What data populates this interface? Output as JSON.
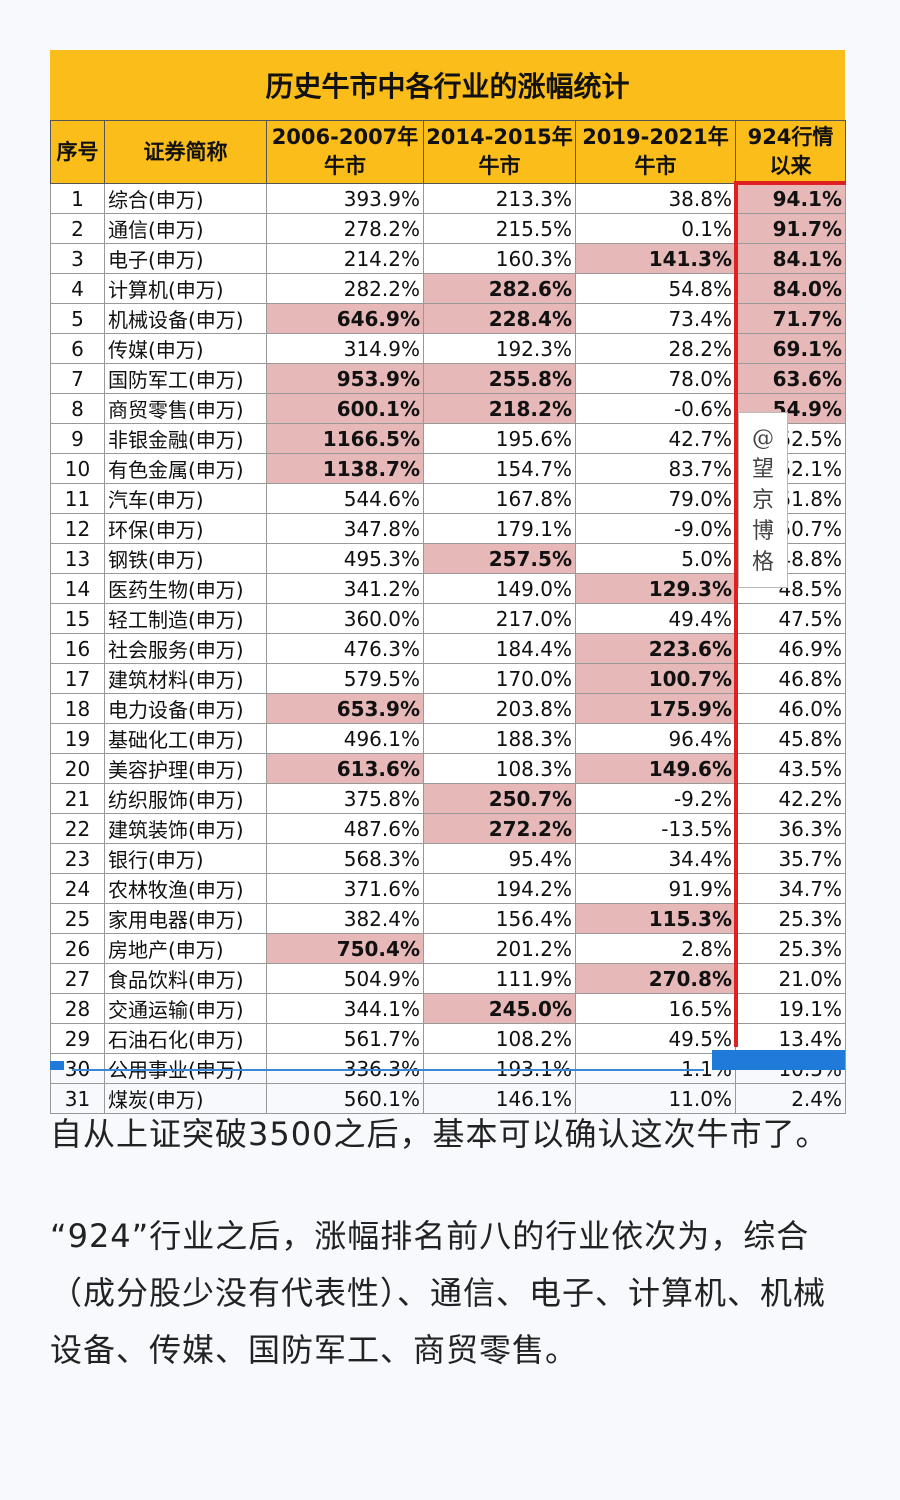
{
  "title": "历史牛市中各行业的涨幅统计",
  "headers": {
    "no": "序号",
    "name": "证券简称",
    "p1_line1": "2006-2007年",
    "p1_line2": "牛市",
    "p2_line1": "2014-2015年",
    "p2_line2": "牛市",
    "p3_line1": "2019-2021年",
    "p3_line2": "牛市",
    "p4_line1": "924行情",
    "p4_line2": "以来"
  },
  "rows": [
    {
      "no": "1",
      "name": "综合(申万)",
      "p1": "393.9%",
      "p2": "213.3%",
      "p3": "38.8%",
      "p4": "94.1%",
      "h1": false,
      "h2": false,
      "h3": false,
      "h4": true
    },
    {
      "no": "2",
      "name": "通信(申万)",
      "p1": "278.2%",
      "p2": "215.5%",
      "p3": "0.1%",
      "p4": "91.7%",
      "h1": false,
      "h2": false,
      "h3": false,
      "h4": true
    },
    {
      "no": "3",
      "name": "电子(申万)",
      "p1": "214.2%",
      "p2": "160.3%",
      "p3": "141.3%",
      "p4": "84.1%",
      "h1": false,
      "h2": false,
      "h3": true,
      "h4": true
    },
    {
      "no": "4",
      "name": "计算机(申万)",
      "p1": "282.2%",
      "p2": "282.6%",
      "p3": "54.8%",
      "p4": "84.0%",
      "h1": false,
      "h2": true,
      "h3": false,
      "h4": true
    },
    {
      "no": "5",
      "name": "机械设备(申万)",
      "p1": "646.9%",
      "p2": "228.4%",
      "p3": "73.4%",
      "p4": "71.7%",
      "h1": true,
      "h2": true,
      "h3": false,
      "h4": true
    },
    {
      "no": "6",
      "name": "传媒(申万)",
      "p1": "314.9%",
      "p2": "192.3%",
      "p3": "28.2%",
      "p4": "69.1%",
      "h1": false,
      "h2": false,
      "h3": false,
      "h4": true
    },
    {
      "no": "7",
      "name": "国防军工(申万)",
      "p1": "953.9%",
      "p2": "255.8%",
      "p3": "78.0%",
      "p4": "63.6%",
      "h1": true,
      "h2": true,
      "h3": false,
      "h4": true
    },
    {
      "no": "8",
      "name": "商贸零售(申万)",
      "p1": "600.1%",
      "p2": "218.2%",
      "p3": "-0.6%",
      "p4": "54.9%",
      "h1": true,
      "h2": true,
      "h3": false,
      "h4": true
    },
    {
      "no": "9",
      "name": "非银金融(申万)",
      "p1": "1166.5%",
      "p2": "195.6%",
      "p3": "42.7%",
      "p4": "52.5%",
      "h1": true,
      "h2": false,
      "h3": false,
      "h4": false
    },
    {
      "no": "10",
      "name": "有色金属(申万)",
      "p1": "1138.7%",
      "p2": "154.7%",
      "p3": "83.7%",
      "p4": "52.1%",
      "h1": true,
      "h2": false,
      "h3": false,
      "h4": false
    },
    {
      "no": "11",
      "name": "汽车(申万)",
      "p1": "544.6%",
      "p2": "167.8%",
      "p3": "79.0%",
      "p4": "51.8%",
      "h1": false,
      "h2": false,
      "h3": false,
      "h4": false
    },
    {
      "no": "12",
      "name": "环保(申万)",
      "p1": "347.8%",
      "p2": "179.1%",
      "p3": "-9.0%",
      "p4": "50.7%",
      "h1": false,
      "h2": false,
      "h3": false,
      "h4": false
    },
    {
      "no": "13",
      "name": "钢铁(申万)",
      "p1": "495.3%",
      "p2": "257.5%",
      "p3": "5.0%",
      "p4": "48.8%",
      "h1": false,
      "h2": true,
      "h3": false,
      "h4": false
    },
    {
      "no": "14",
      "name": "医药生物(申万)",
      "p1": "341.2%",
      "p2": "149.0%",
      "p3": "129.3%",
      "p4": "48.5%",
      "h1": false,
      "h2": false,
      "h3": true,
      "h4": false
    },
    {
      "no": "15",
      "name": "轻工制造(申万)",
      "p1": "360.0%",
      "p2": "217.0%",
      "p3": "49.4%",
      "p4": "47.5%",
      "h1": false,
      "h2": false,
      "h3": false,
      "h4": false
    },
    {
      "no": "16",
      "name": "社会服务(申万)",
      "p1": "476.3%",
      "p2": "184.4%",
      "p3": "223.6%",
      "p4": "46.9%",
      "h1": false,
      "h2": false,
      "h3": true,
      "h4": false
    },
    {
      "no": "17",
      "name": "建筑材料(申万)",
      "p1": "579.5%",
      "p2": "170.0%",
      "p3": "100.7%",
      "p4": "46.8%",
      "h1": false,
      "h2": false,
      "h3": true,
      "h4": false
    },
    {
      "no": "18",
      "name": "电力设备(申万)",
      "p1": "653.9%",
      "p2": "203.8%",
      "p3": "175.9%",
      "p4": "46.0%",
      "h1": true,
      "h2": false,
      "h3": true,
      "h4": false
    },
    {
      "no": "19",
      "name": "基础化工(申万)",
      "p1": "496.1%",
      "p2": "188.3%",
      "p3": "96.4%",
      "p4": "45.8%",
      "h1": false,
      "h2": false,
      "h3": false,
      "h4": false
    },
    {
      "no": "20",
      "name": "美容护理(申万)",
      "p1": "613.6%",
      "p2": "108.3%",
      "p3": "149.6%",
      "p4": "43.5%",
      "h1": true,
      "h2": false,
      "h3": true,
      "h4": false
    },
    {
      "no": "21",
      "name": "纺织服饰(申万)",
      "p1": "375.8%",
      "p2": "250.7%",
      "p3": "-9.2%",
      "p4": "42.2%",
      "h1": false,
      "h2": true,
      "h3": false,
      "h4": false
    },
    {
      "no": "22",
      "name": "建筑装饰(申万)",
      "p1": "487.6%",
      "p2": "272.2%",
      "p3": "-13.5%",
      "p4": "36.3%",
      "h1": false,
      "h2": true,
      "h3": false,
      "h4": false
    },
    {
      "no": "23",
      "name": "银行(申万)",
      "p1": "568.3%",
      "p2": "95.4%",
      "p3": "34.4%",
      "p4": "35.7%",
      "h1": false,
      "h2": false,
      "h3": false,
      "h4": false
    },
    {
      "no": "24",
      "name": "农林牧渔(申万)",
      "p1": "371.6%",
      "p2": "194.2%",
      "p3": "91.9%",
      "p4": "34.7%",
      "h1": false,
      "h2": false,
      "h3": false,
      "h4": false
    },
    {
      "no": "25",
      "name": "家用电器(申万)",
      "p1": "382.4%",
      "p2": "156.4%",
      "p3": "115.3%",
      "p4": "25.3%",
      "h1": false,
      "h2": false,
      "h3": true,
      "h4": false
    },
    {
      "no": "26",
      "name": "房地产(申万)",
      "p1": "750.4%",
      "p2": "201.2%",
      "p3": "2.8%",
      "p4": "25.3%",
      "h1": true,
      "h2": false,
      "h3": false,
      "h4": false
    },
    {
      "no": "27",
      "name": "食品饮料(申万)",
      "p1": "504.9%",
      "p2": "111.9%",
      "p3": "270.8%",
      "p4": "21.0%",
      "h1": false,
      "h2": false,
      "h3": true,
      "h4": false
    },
    {
      "no": "28",
      "name": "交通运输(申万)",
      "p1": "344.1%",
      "p2": "245.0%",
      "p3": "16.5%",
      "p4": "19.1%",
      "h1": false,
      "h2": true,
      "h3": false,
      "h4": false
    },
    {
      "no": "29",
      "name": "石油石化(申万)",
      "p1": "561.7%",
      "p2": "108.2%",
      "p3": "49.5%",
      "p4": "13.4%",
      "h1": false,
      "h2": false,
      "h3": false,
      "h4": false
    },
    {
      "no": "30",
      "name": "公用事业(申万)",
      "p1": "336.3%",
      "p2": "193.1%",
      "p3": "-1.1%",
      "p4": "10.5%",
      "h1": false,
      "h2": false,
      "h3": false,
      "h4": false
    },
    {
      "no": "31",
      "name": "煤炭(申万)",
      "p1": "560.1%",
      "p2": "146.1%",
      "p3": "11.0%",
      "p4": "2.4%",
      "h1": false,
      "h2": false,
      "h3": false,
      "h4": false
    }
  ],
  "watermark": {
    "at": "@",
    "c1": "望",
    "c2": "京",
    "c3": "博",
    "c4": "格"
  },
  "paragraph1": "自从上证突破3500之后，基本可以确认这次牛市了。",
  "paragraph2": "“924”行业之后，涨幅排名前八的行业依次为，综合（成分股少没有代表性）、通信、电子、计算机、机械设备、传媒、国防军工、商贸零售。",
  "colors": {
    "header_bg": "#fbbd1a",
    "highlight_bg": "#e6b8b8",
    "frame_red": "#e02020",
    "accent_blue": "#1f7ad9"
  }
}
